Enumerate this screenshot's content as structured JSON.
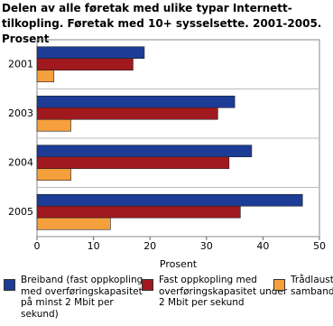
{
  "chart_data": {
    "type": "hbar",
    "title": "Delen av alle føretak med ulike typar Internett-tilkopling. Føretak med 10+ sysselsette. 2001-2005. Prosent",
    "x_label": "Prosent",
    "categories": [
      "2001",
      "2003",
      "2004",
      "2005"
    ],
    "series": [
      {
        "name": "Breiband (fast oppkopling med overføringskapasitet på minst 2 Mbit per sekund)",
        "color": "#1c3c96",
        "values": [
          19,
          35,
          38,
          47
        ]
      },
      {
        "name": "Fast oppkopling med overføringskapasitet under 2 Mbit per sekund",
        "color": "#a0191e",
        "values": [
          17,
          32,
          34,
          36
        ]
      },
      {
        "name": "Trådlaust samband",
        "color": "#f5a03c",
        "values": [
          3,
          6,
          6,
          13
        ]
      }
    ],
    "xlim": [
      0,
      50
    ],
    "xticks": [
      0,
      10,
      20,
      30,
      40,
      50
    ],
    "grid": false
  }
}
